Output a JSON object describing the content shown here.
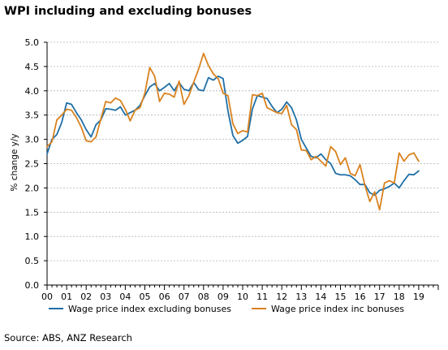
{
  "chart_data": {
    "type": "line",
    "title": "WPI including and excluding bonuses",
    "xlabel": "",
    "ylabel": "% change y/y",
    "x_ticks": [
      "00",
      "01",
      "02",
      "03",
      "04",
      "05",
      "06",
      "07",
      "08",
      "09",
      "10",
      "11",
      "12",
      "13",
      "14",
      "15",
      "16",
      "17",
      "18",
      "19"
    ],
    "y_ticks": [
      "0.0",
      "0.5",
      "1.0",
      "1.5",
      "2.0",
      "2.5",
      "3.0",
      "3.5",
      "4.0",
      "4.5",
      "5.0"
    ],
    "xlim": [
      2000,
      2020
    ],
    "ylim": [
      0,
      5
    ],
    "grid": true,
    "legend_position": "bottom",
    "series": [
      {
        "name": "Wage price index excluding bonuses",
        "color": "#1f6fa6",
        "x": [
          2000.0,
          2000.25,
          2000.5,
          2000.75,
          2001.0,
          2001.25,
          2001.5,
          2001.75,
          2002.0,
          2002.25,
          2002.5,
          2002.75,
          2003.0,
          2003.25,
          2003.5,
          2003.75,
          2004.0,
          2004.25,
          2004.5,
          2004.75,
          2005.0,
          2005.25,
          2005.5,
          2005.75,
          2006.0,
          2006.25,
          2006.5,
          2006.75,
          2007.0,
          2007.25,
          2007.5,
          2007.75,
          2008.0,
          2008.25,
          2008.5,
          2008.75,
          2009.0,
          2009.25,
          2009.5,
          2009.75,
          2010.0,
          2010.25,
          2010.5,
          2010.75,
          2011.0,
          2011.25,
          2011.5,
          2011.75,
          2012.0,
          2012.25,
          2012.5,
          2012.75,
          2013.0,
          2013.25,
          2013.5,
          2013.75,
          2014.0,
          2014.25,
          2014.5,
          2014.75,
          2015.0,
          2015.25,
          2015.5,
          2015.75,
          2016.0,
          2016.25,
          2016.5,
          2016.75,
          2017.0,
          2017.25,
          2017.5,
          2017.75,
          2018.0,
          2018.25,
          2018.5,
          2018.75,
          2019.0
        ],
        "values": [
          2.7,
          3.0,
          3.1,
          3.35,
          3.75,
          3.72,
          3.55,
          3.4,
          3.2,
          3.05,
          3.3,
          3.4,
          3.63,
          3.62,
          3.6,
          3.67,
          3.5,
          3.55,
          3.6,
          3.7,
          3.9,
          4.08,
          4.15,
          4.0,
          4.07,
          4.15,
          4.0,
          4.17,
          4.03,
          4.0,
          4.17,
          4.02,
          4.0,
          4.27,
          4.22,
          4.3,
          4.25,
          3.58,
          3.08,
          2.92,
          2.98,
          3.06,
          3.63,
          3.9,
          3.87,
          3.84,
          3.68,
          3.55,
          3.62,
          3.77,
          3.65,
          3.4,
          3.0,
          2.82,
          2.65,
          2.62,
          2.7,
          2.58,
          2.5,
          2.3,
          2.27,
          2.27,
          2.25,
          2.17,
          2.07,
          2.07,
          1.9,
          1.85,
          1.95,
          1.98,
          2.03,
          2.1,
          2.0,
          2.15,
          2.28,
          2.27,
          2.35
        ]
      },
      {
        "name": "Wage price index inc bonuses",
        "color": "#d9821f",
        "x": [
          2000.0,
          2000.25,
          2000.5,
          2000.75,
          2001.0,
          2001.25,
          2001.5,
          2001.75,
          2002.0,
          2002.25,
          2002.5,
          2002.75,
          2003.0,
          2003.25,
          2003.5,
          2003.75,
          2004.0,
          2004.25,
          2004.5,
          2004.75,
          2005.0,
          2005.25,
          2005.5,
          2005.75,
          2006.0,
          2006.25,
          2006.5,
          2006.75,
          2007.0,
          2007.25,
          2007.5,
          2007.75,
          2008.0,
          2008.25,
          2008.5,
          2008.75,
          2009.0,
          2009.25,
          2009.5,
          2009.75,
          2010.0,
          2010.25,
          2010.5,
          2010.75,
          2011.0,
          2011.25,
          2011.5,
          2011.75,
          2012.0,
          2012.25,
          2012.5,
          2012.75,
          2013.0,
          2013.25,
          2013.5,
          2013.75,
          2014.0,
          2014.25,
          2014.5,
          2014.75,
          2015.0,
          2015.25,
          2015.5,
          2015.75,
          2016.0,
          2016.25,
          2016.5,
          2016.75,
          2017.0,
          2017.25,
          2017.5,
          2017.75,
          2018.0,
          2018.25,
          2018.5,
          2018.75,
          2019.0
        ],
        "values": [
          2.85,
          2.95,
          3.4,
          3.5,
          3.62,
          3.6,
          3.45,
          3.25,
          2.97,
          2.95,
          3.05,
          3.42,
          3.78,
          3.75,
          3.85,
          3.8,
          3.62,
          3.38,
          3.6,
          3.65,
          3.95,
          4.48,
          4.3,
          3.78,
          3.95,
          3.93,
          3.87,
          4.2,
          3.72,
          3.9,
          4.18,
          4.45,
          4.77,
          4.52,
          4.35,
          4.25,
          3.95,
          3.9,
          3.32,
          3.12,
          3.18,
          3.15,
          3.92,
          3.9,
          3.95,
          3.65,
          3.6,
          3.55,
          3.53,
          3.7,
          3.3,
          3.2,
          2.78,
          2.77,
          2.58,
          2.65,
          2.55,
          2.45,
          2.85,
          2.75,
          2.48,
          2.62,
          2.3,
          2.25,
          2.48,
          2.05,
          1.72,
          1.92,
          1.55,
          2.1,
          2.15,
          2.1,
          2.72,
          2.55,
          2.68,
          2.72,
          2.55
        ]
      }
    ]
  },
  "footer": {
    "source": "Source: ABS, ANZ Research"
  }
}
